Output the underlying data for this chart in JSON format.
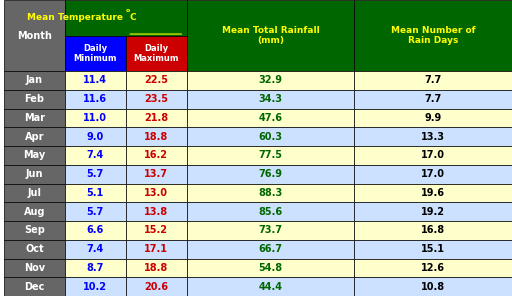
{
  "months": [
    "Jan",
    "Feb",
    "Mar",
    "Apr",
    "May",
    "Jun",
    "Jul",
    "Aug",
    "Sep",
    "Oct",
    "Nov",
    "Dec"
  ],
  "daily_min": [
    11.4,
    11.6,
    11.0,
    9.0,
    7.4,
    5.7,
    5.1,
    5.7,
    6.6,
    7.4,
    8.7,
    10.2
  ],
  "daily_max": [
    22.5,
    23.5,
    21.8,
    18.8,
    16.2,
    13.7,
    13.0,
    13.8,
    15.2,
    17.1,
    18.8,
    20.6
  ],
  "rainfall": [
    32.9,
    34.3,
    47.6,
    60.3,
    77.5,
    76.9,
    88.3,
    85.6,
    73.7,
    66.7,
    54.8,
    44.4
  ],
  "rain_days": [
    7.7,
    7.7,
    9.9,
    13.3,
    17.0,
    17.0,
    19.6,
    19.2,
    16.8,
    15.1,
    12.6,
    10.8
  ],
  "col_header_bg": "#006600",
  "col_header_text": "#FFFF00",
  "sub_header_min_bg": "#0000FF",
  "sub_header_max_bg": "#CC0000",
  "sub_header_text": "#FFFFFF",
  "month_col_bg": "#666666",
  "month_col_text": "#FFFFFF",
  "row_bg_odd": "#FFFFCC",
  "row_bg_even": "#CCE0FF",
  "min_text_color": "#0000FF",
  "max_text_color": "#CC0000",
  "rainfall_text_color": "#006600",
  "rain_days_text_color": "#000000",
  "border_color": "#000000",
  "superscript_color": "#FFFF00",
  "title": "Mean Temperature °C",
  "col3_header": "Mean Total Rainfall\n(mm)",
  "col4_header": "Mean Number of\nRain Days"
}
